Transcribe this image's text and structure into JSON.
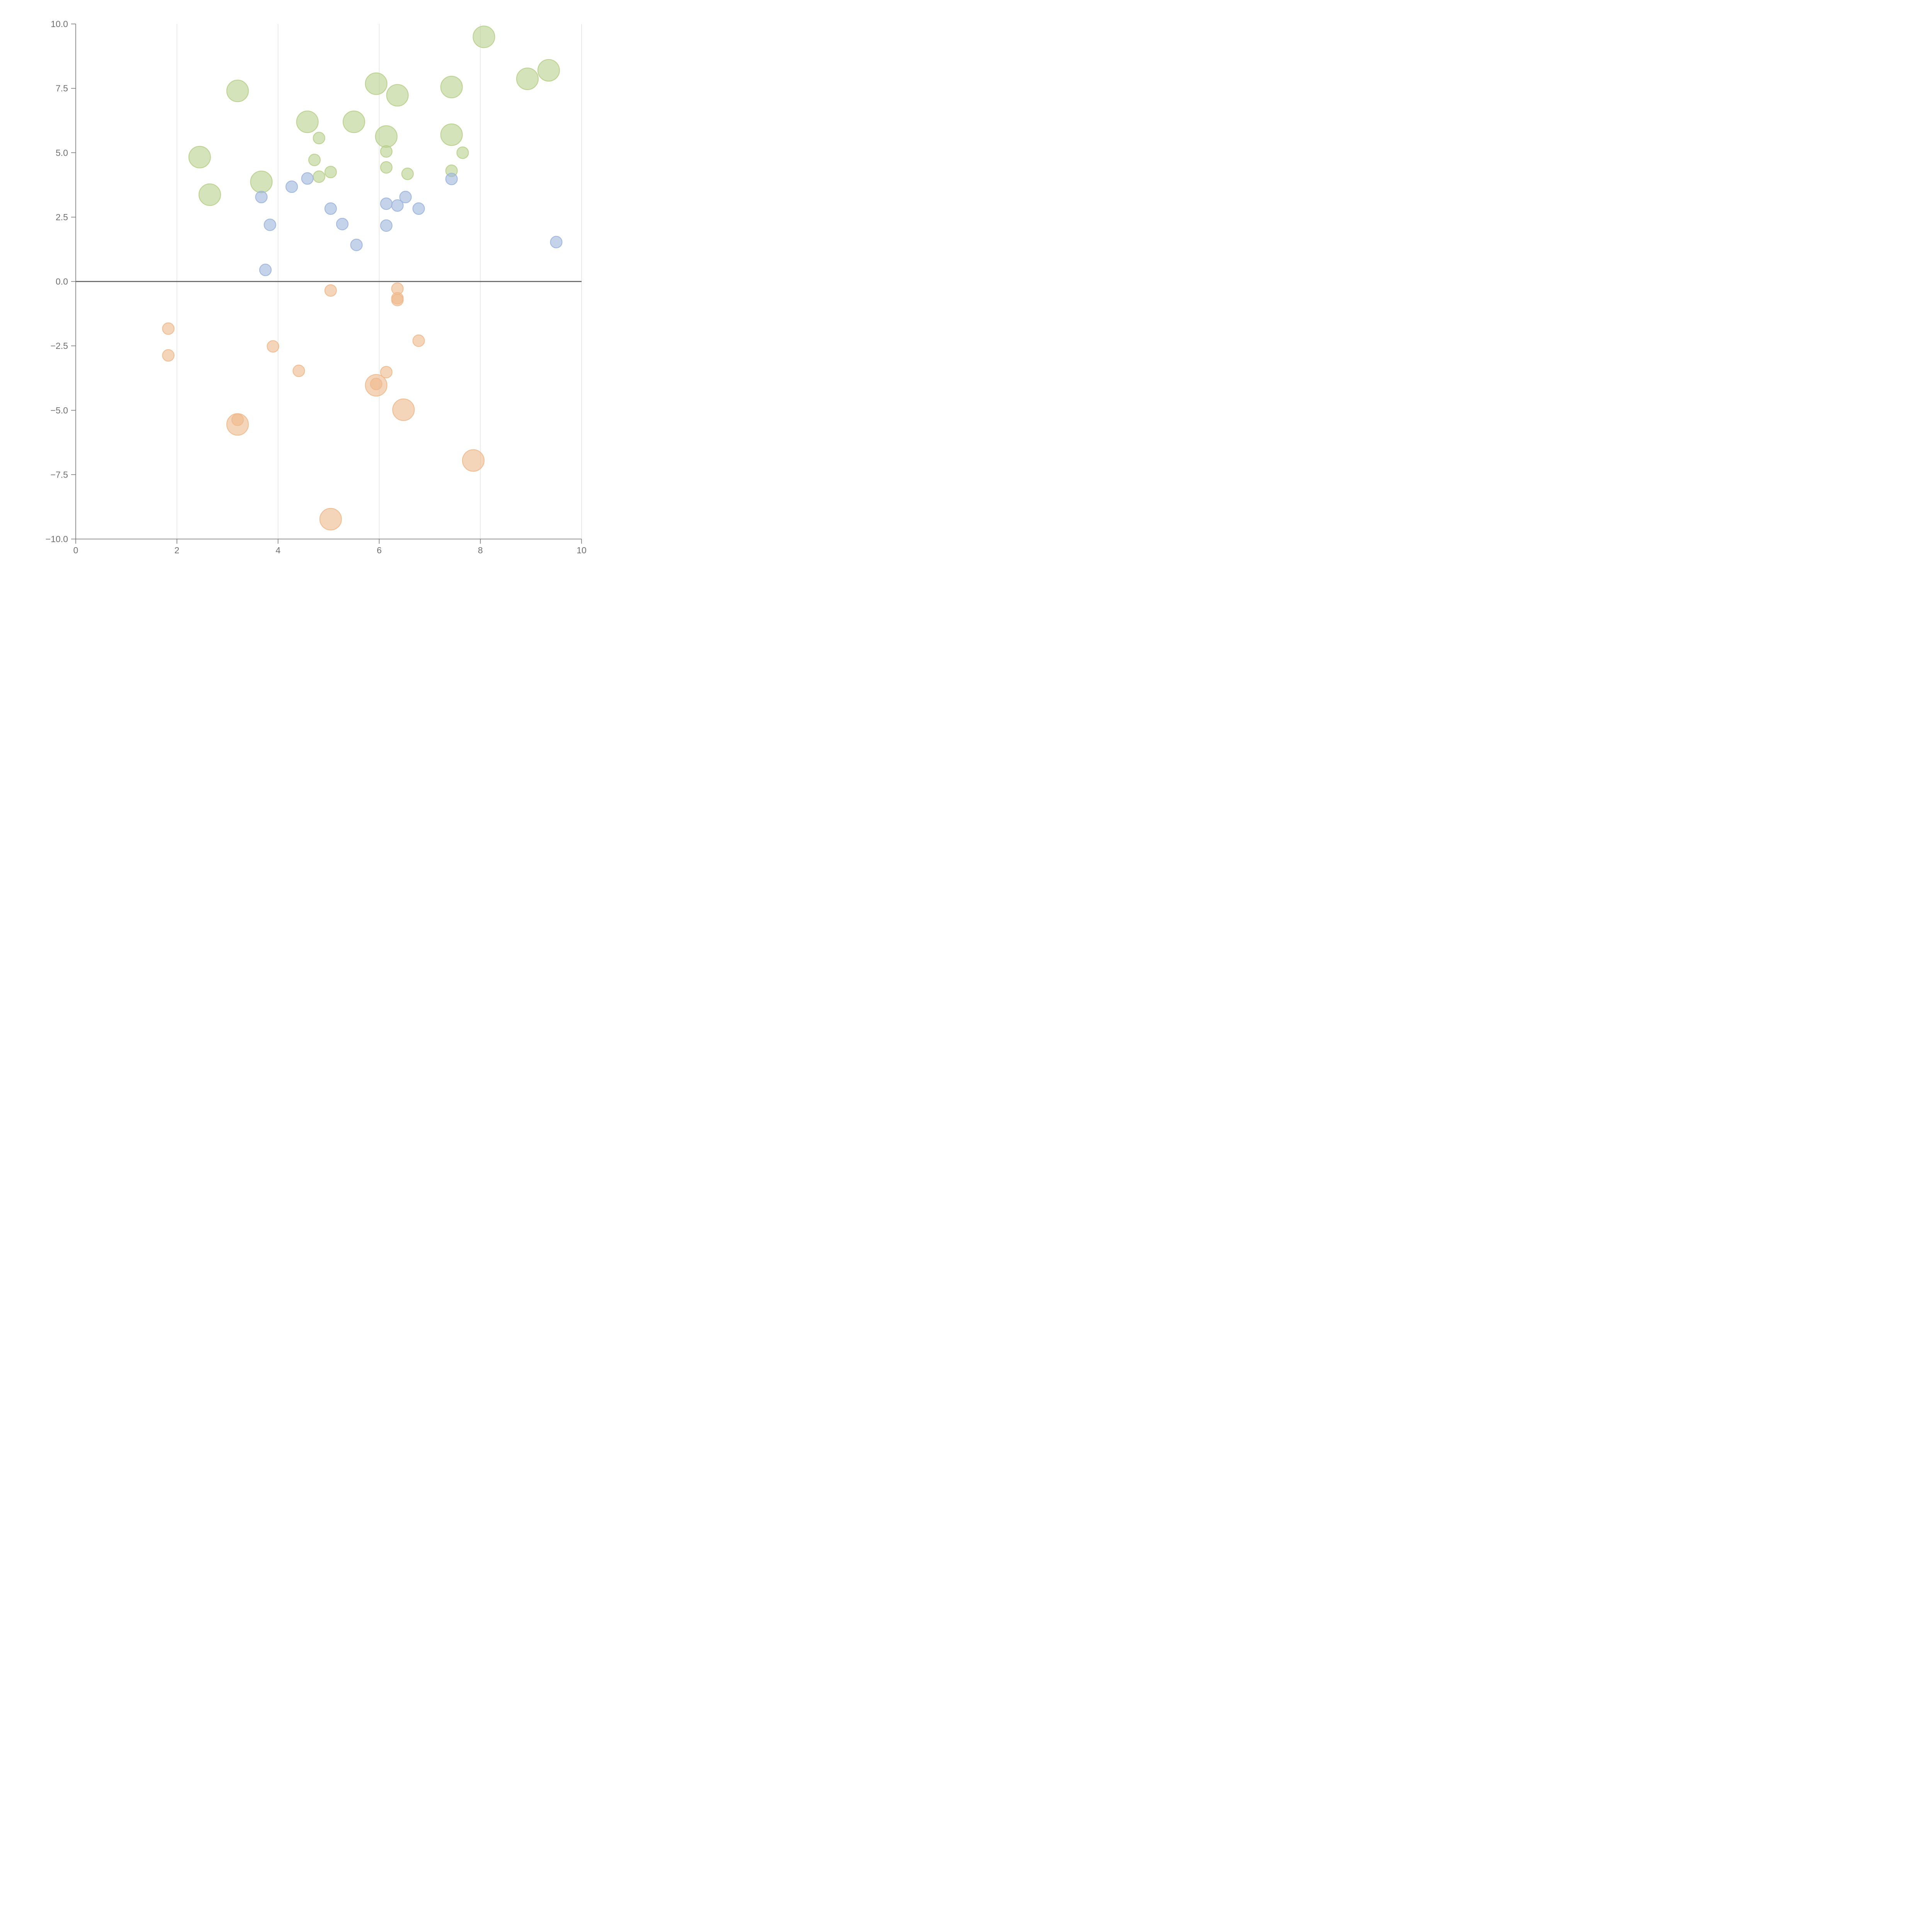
{
  "chart_data": {
    "type": "scatter",
    "title": "",
    "xlabel": "",
    "ylabel": "",
    "xlim": [
      0,
      10
    ],
    "ylim": [
      -10,
      10
    ],
    "x_ticks": [
      0,
      2,
      4,
      6,
      8,
      10
    ],
    "x_tick_labels": [
      "0",
      "2",
      "4",
      "6",
      "8",
      "10"
    ],
    "y_ticks": [
      10,
      7.5,
      5,
      2.5,
      0,
      -2.5,
      -5,
      -7.5,
      -10
    ],
    "y_tick_labels": [
      "10.0",
      "7.5",
      "5.0",
      "2.5",
      "0.0",
      "−2.5",
      "−5.0",
      "−7.5",
      "−10.0"
    ],
    "vertical_grid": true,
    "horizontal_grid": false,
    "zero_line": true,
    "legend": "none",
    "series": [
      {
        "color": "#b7d08a",
        "points": [
          {
            "x": 8.07,
            "y": 9.5,
            "size": "large"
          },
          {
            "x": 9.35,
            "y": 8.2,
            "size": "large"
          },
          {
            "x": 8.93,
            "y": 7.87,
            "size": "large"
          },
          {
            "x": 3.2,
            "y": 7.4,
            "size": "large"
          },
          {
            "x": 5.94,
            "y": 7.68,
            "size": "large"
          },
          {
            "x": 6.36,
            "y": 7.23,
            "size": "large"
          },
          {
            "x": 7.43,
            "y": 7.55,
            "size": "large"
          },
          {
            "x": 4.58,
            "y": 6.2,
            "size": "large"
          },
          {
            "x": 5.5,
            "y": 6.2,
            "size": "large"
          },
          {
            "x": 6.14,
            "y": 5.63,
            "size": "large"
          },
          {
            "x": 7.43,
            "y": 5.7,
            "size": "large"
          },
          {
            "x": 2.45,
            "y": 4.83,
            "size": "large"
          },
          {
            "x": 3.67,
            "y": 3.87,
            "size": "large"
          },
          {
            "x": 2.65,
            "y": 3.37,
            "size": "large"
          },
          {
            "x": 4.81,
            "y": 5.57,
            "size": "small"
          },
          {
            "x": 6.14,
            "y": 5.05,
            "size": "small"
          },
          {
            "x": 7.65,
            "y": 5.0,
            "size": "small"
          },
          {
            "x": 4.72,
            "y": 4.72,
            "size": "small"
          },
          {
            "x": 5.04,
            "y": 4.25,
            "size": "small"
          },
          {
            "x": 4.81,
            "y": 4.07,
            "size": "small"
          },
          {
            "x": 6.14,
            "y": 4.43,
            "size": "small"
          },
          {
            "x": 6.56,
            "y": 4.18,
            "size": "small"
          },
          {
            "x": 7.43,
            "y": 4.3,
            "size": "small"
          }
        ]
      },
      {
        "color": "#9db4dc",
        "points": [
          {
            "x": 4.58,
            "y": 4.0,
            "size": "small"
          },
          {
            "x": 4.27,
            "y": 3.68,
            "size": "small"
          },
          {
            "x": 3.67,
            "y": 3.28,
            "size": "small"
          },
          {
            "x": 3.84,
            "y": 2.2,
            "size": "small"
          },
          {
            "x": 5.04,
            "y": 2.83,
            "size": "small"
          },
          {
            "x": 5.27,
            "y": 2.23,
            "size": "small"
          },
          {
            "x": 5.55,
            "y": 1.42,
            "size": "small"
          },
          {
            "x": 6.14,
            "y": 3.02,
            "size": "small"
          },
          {
            "x": 6.36,
            "y": 2.95,
            "size": "small"
          },
          {
            "x": 6.52,
            "y": 3.28,
            "size": "small"
          },
          {
            "x": 6.78,
            "y": 2.83,
            "size": "small"
          },
          {
            "x": 6.14,
            "y": 2.17,
            "size": "small"
          },
          {
            "x": 7.43,
            "y": 3.98,
            "size": "small"
          },
          {
            "x": 9.5,
            "y": 1.53,
            "size": "small"
          },
          {
            "x": 3.75,
            "y": 0.45,
            "size": "small"
          }
        ]
      },
      {
        "color": "#efb98c",
        "points": [
          {
            "x": 5.04,
            "y": -0.35,
            "size": "small"
          },
          {
            "x": 6.36,
            "y": -0.28,
            "size": "small"
          },
          {
            "x": 6.36,
            "y": -0.65,
            "size": "small"
          },
          {
            "x": 6.36,
            "y": -0.72,
            "size": "small"
          },
          {
            "x": 1.83,
            "y": -1.83,
            "size": "small"
          },
          {
            "x": 1.83,
            "y": -2.87,
            "size": "small"
          },
          {
            "x": 3.9,
            "y": -2.52,
            "size": "small"
          },
          {
            "x": 6.78,
            "y": -2.3,
            "size": "small"
          },
          {
            "x": 4.41,
            "y": -3.47,
            "size": "small"
          },
          {
            "x": 6.14,
            "y": -3.52,
            "size": "small"
          },
          {
            "x": 5.94,
            "y": -3.98,
            "size": "small"
          },
          {
            "x": 5.94,
            "y": -4.03,
            "size": "large"
          },
          {
            "x": 6.48,
            "y": -4.98,
            "size": "large"
          },
          {
            "x": 3.2,
            "y": -5.37,
            "size": "small"
          },
          {
            "x": 3.2,
            "y": -5.55,
            "size": "large"
          },
          {
            "x": 7.86,
            "y": -6.95,
            "size": "large"
          },
          {
            "x": 5.04,
            "y": -9.23,
            "size": "large"
          }
        ]
      }
    ]
  }
}
